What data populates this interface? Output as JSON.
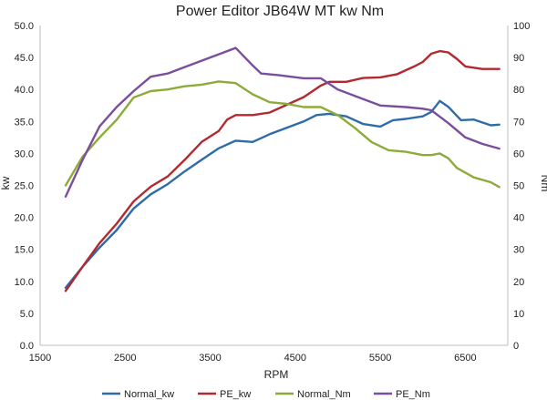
{
  "chart_data": {
    "type": "line",
    "title": "Power Editor  JB64W MT  kw Nm",
    "xlabel": "RPM",
    "ylabel_left": "kw",
    "ylabel_right": "Nm",
    "xlim": [
      1500,
      7000
    ],
    "xticks": [
      1500,
      2500,
      3500,
      4500,
      5500,
      6500
    ],
    "ylim_left": [
      0,
      50
    ],
    "yticks_left": [
      0,
      5,
      10,
      15,
      20,
      25,
      30,
      35,
      40,
      45,
      50
    ],
    "ylim_right": [
      0,
      100
    ],
    "yticks_right": [
      0,
      10,
      20,
      30,
      40,
      50,
      60,
      70,
      80,
      90,
      100
    ],
    "grid": false,
    "legend_position": "bottom",
    "series": [
      {
        "name": "Normal_kw",
        "axis": "left",
        "color": "#2e6ca8",
        "points": [
          [
            1800,
            9.0
          ],
          [
            2000,
            12.3
          ],
          [
            2200,
            15.3
          ],
          [
            2400,
            18.0
          ],
          [
            2600,
            21.4
          ],
          [
            2800,
            23.6
          ],
          [
            3000,
            25.2
          ],
          [
            3200,
            27.2
          ],
          [
            3400,
            29.0
          ],
          [
            3600,
            30.8
          ],
          [
            3800,
            32.0
          ],
          [
            4000,
            31.8
          ],
          [
            4200,
            33.0
          ],
          [
            4400,
            34.0
          ],
          [
            4600,
            35.0
          ],
          [
            4750,
            36.0
          ],
          [
            4900,
            36.2
          ],
          [
            5100,
            35.8
          ],
          [
            5300,
            34.6
          ],
          [
            5500,
            34.2
          ],
          [
            5650,
            35.2
          ],
          [
            5800,
            35.4
          ],
          [
            6000,
            35.8
          ],
          [
            6100,
            36.5
          ],
          [
            6200,
            38.2
          ],
          [
            6300,
            37.3
          ],
          [
            6450,
            35.2
          ],
          [
            6600,
            35.3
          ],
          [
            6800,
            34.4
          ],
          [
            6900,
            34.5
          ]
        ]
      },
      {
        "name": "PE_kw",
        "axis": "left",
        "color": "#b22a30",
        "points": [
          [
            1800,
            8.5
          ],
          [
            2000,
            12.3
          ],
          [
            2200,
            16.0
          ],
          [
            2400,
            19.0
          ],
          [
            2600,
            22.5
          ],
          [
            2800,
            24.8
          ],
          [
            3000,
            26.4
          ],
          [
            3200,
            29.0
          ],
          [
            3400,
            31.8
          ],
          [
            3600,
            33.5
          ],
          [
            3700,
            35.3
          ],
          [
            3800,
            36.0
          ],
          [
            4000,
            36.0
          ],
          [
            4200,
            36.4
          ],
          [
            4400,
            37.6
          ],
          [
            4600,
            38.8
          ],
          [
            4800,
            40.6
          ],
          [
            4900,
            41.2
          ],
          [
            5100,
            41.2
          ],
          [
            5300,
            41.8
          ],
          [
            5500,
            41.9
          ],
          [
            5700,
            42.4
          ],
          [
            5900,
            43.6
          ],
          [
            6000,
            44.3
          ],
          [
            6100,
            45.6
          ],
          [
            6200,
            46.0
          ],
          [
            6300,
            45.8
          ],
          [
            6400,
            44.8
          ],
          [
            6500,
            43.6
          ],
          [
            6700,
            43.2
          ],
          [
            6900,
            43.2
          ]
        ]
      },
      {
        "name": "Normal_Nm",
        "axis": "right",
        "color": "#8dab3a",
        "points": [
          [
            1800,
            50.0
          ],
          [
            2000,
            59.0
          ],
          [
            2200,
            65.0
          ],
          [
            2400,
            70.5
          ],
          [
            2600,
            77.5
          ],
          [
            2800,
            79.5
          ],
          [
            3000,
            80.0
          ],
          [
            3200,
            81.0
          ],
          [
            3400,
            81.5
          ],
          [
            3600,
            82.5
          ],
          [
            3800,
            82.0
          ],
          [
            4000,
            78.5
          ],
          [
            4200,
            76.0
          ],
          [
            4400,
            75.5
          ],
          [
            4600,
            74.5
          ],
          [
            4800,
            74.5
          ],
          [
            5000,
            72.0
          ],
          [
            5200,
            68.0
          ],
          [
            5400,
            63.5
          ],
          [
            5600,
            61.0
          ],
          [
            5800,
            60.5
          ],
          [
            6000,
            59.5
          ],
          [
            6100,
            59.5
          ],
          [
            6200,
            60.0
          ],
          [
            6300,
            58.5
          ],
          [
            6400,
            55.5
          ],
          [
            6600,
            52.5
          ],
          [
            6800,
            51.0
          ],
          [
            6900,
            49.5
          ]
        ]
      },
      {
        "name": "PE_Nm",
        "axis": "right",
        "color": "#7a4e9d",
        "points": [
          [
            1800,
            46.5
          ],
          [
            2000,
            58.0
          ],
          [
            2200,
            68.5
          ],
          [
            2400,
            74.5
          ],
          [
            2600,
            79.5
          ],
          [
            2800,
            84.0
          ],
          [
            3000,
            85.0
          ],
          [
            3200,
            87.0
          ],
          [
            3400,
            89.0
          ],
          [
            3600,
            91.0
          ],
          [
            3800,
            93.0
          ],
          [
            4000,
            87.5
          ],
          [
            4100,
            85.0
          ],
          [
            4300,
            84.5
          ],
          [
            4600,
            83.5
          ],
          [
            4800,
            83.5
          ],
          [
            5000,
            80.0
          ],
          [
            5200,
            78.0
          ],
          [
            5500,
            75.0
          ],
          [
            5800,
            74.5
          ],
          [
            6000,
            74.0
          ],
          [
            6100,
            73.5
          ],
          [
            6300,
            69.5
          ],
          [
            6500,
            65.0
          ],
          [
            6700,
            63.0
          ],
          [
            6900,
            61.5
          ]
        ]
      }
    ]
  }
}
